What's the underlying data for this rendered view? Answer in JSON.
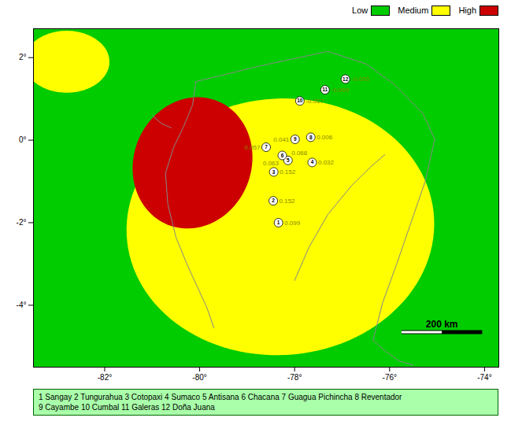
{
  "chart_data": {
    "type": "map",
    "xlim": [
      -83.5,
      -73.7
    ],
    "ylim": [
      -5.5,
      2.7
    ],
    "xticks": [
      {
        "value": -82,
        "label": "-82°"
      },
      {
        "value": -80,
        "label": "-80°"
      },
      {
        "value": -78,
        "label": "-78°"
      },
      {
        "value": -76,
        "label": "-76°"
      },
      {
        "value": -74,
        "label": "-74°"
      }
    ],
    "yticks": [
      {
        "value": -4,
        "label": "-4°"
      },
      {
        "value": -2,
        "label": "-2°"
      },
      {
        "value": 0,
        "label": "0°"
      },
      {
        "value": 2,
        "label": "2°"
      }
    ],
    "grid": false,
    "legend": "top",
    "series": [
      {
        "name": "Low",
        "color": "#00cc00",
        "shapes": []
      },
      {
        "name": "Medium",
        "color": "#ffff00",
        "shapes": [
          {
            "lon": -78.3,
            "lat": -2.1,
            "width": 6.5,
            "height": 6.2,
            "angle": 15
          },
          {
            "lon": -82.8,
            "lat": 1.9,
            "width": 1.8,
            "height": 1.5,
            "angle": 0
          }
        ]
      },
      {
        "name": "High",
        "color": "#cc0000",
        "shapes": [
          {
            "lon": -80.15,
            "lat": -0.55,
            "width": 2.5,
            "height": 3.2,
            "angle": -10
          }
        ]
      }
    ],
    "coastline_color": "#888888",
    "coastlines": [
      {
        "lon": [
          -80.08,
          -80.15,
          -80.35,
          -80.55,
          -80.72,
          -80.67,
          -80.5,
          -80.25,
          -80.05,
          -79.85,
          -79.7
        ],
        "lat": [
          1.42,
          0.85,
          0.3,
          -0.18,
          -0.8,
          -1.55,
          -2.35,
          -3.05,
          -3.55,
          -4.05,
          -4.55
        ]
      },
      {
        "lon": [
          -80.08,
          -79.5,
          -78.8,
          -78.0,
          -77.3,
          -76.5,
          -75.9,
          -75.3,
          -75.05
        ],
        "lat": [
          1.42,
          1.58,
          1.78,
          1.98,
          2.15,
          1.85,
          1.35,
          0.65,
          0.02
        ]
      },
      {
        "lon": [
          -75.05,
          -75.25,
          -75.55,
          -75.85,
          -76.15,
          -76.35,
          -76.1,
          -75.8,
          -75.5
        ],
        "lat": [
          0.02,
          -1.0,
          -2.0,
          -3.0,
          -3.95,
          -4.85,
          -5.1,
          -5.35,
          -5.45
        ]
      },
      {
        "lon": [
          -76.1,
          -76.4,
          -76.8,
          -77.3,
          -77.7,
          -78.0
        ],
        "lat": [
          -0.35,
          -0.65,
          -1.1,
          -1.8,
          -2.6,
          -3.4
        ]
      },
      {
        "lon": [
          -81.0,
          -80.8,
          -80.6
        ],
        "lat": [
          0.6,
          0.4,
          0.3
        ]
      }
    ],
    "islands": {
      "lon": [
        -80.72,
        -80.79
      ],
      "lat": [
        0.06,
        -0.02
      ],
      "color": "#cc0000"
    },
    "text_color": "#888800",
    "volcanoes": [
      {
        "num": 1,
        "lon": -78.34,
        "lat": -2.0,
        "value": 0.099
      },
      {
        "num": 2,
        "lon": -78.45,
        "lat": -1.47,
        "value": 0.152
      },
      {
        "num": 3,
        "lon": -78.44,
        "lat": -0.77,
        "value": 0.152
      },
      {
        "num": 4,
        "lon": -77.63,
        "lat": -0.54,
        "value": 0.032
      },
      {
        "num": 5,
        "lon": -78.14,
        "lat": -0.49,
        "value": 0.068
      },
      {
        "num": 6,
        "lon": -78.26,
        "lat": -0.37,
        "value": 0.063
      },
      {
        "num": 7,
        "lon": -78.6,
        "lat": -0.17,
        "value": 0.057
      },
      {
        "num": 8,
        "lon": -77.66,
        "lat": 0.07,
        "value": 0.006
      },
      {
        "num": 9,
        "lon": -77.99,
        "lat": 0.02,
        "value": 0.041
      },
      {
        "num": 10,
        "lon": -77.89,
        "lat": 0.95,
        "value": -0.017
      },
      {
        "num": 11,
        "lon": -77.36,
        "lat": 1.22,
        "value": -0.009
      },
      {
        "num": 12,
        "lon": -76.93,
        "lat": 1.48,
        "value": -0.005
      }
    ],
    "scale_bar": {
      "lon": [
        -75.75,
        -74.05
      ],
      "lat": -4.65,
      "label": "200 km"
    },
    "caption": "1 Sangay 2 Tungurahua 3 Cotopaxi 4 Sumaco 5 Antisana 6 Chacana 7 Guagua Pichincha 8 Reventador\n9 Cayambe 10 Cumbal 11 Galeras 12 Doña Juana",
    "caption_color": "#aaffaa"
  }
}
